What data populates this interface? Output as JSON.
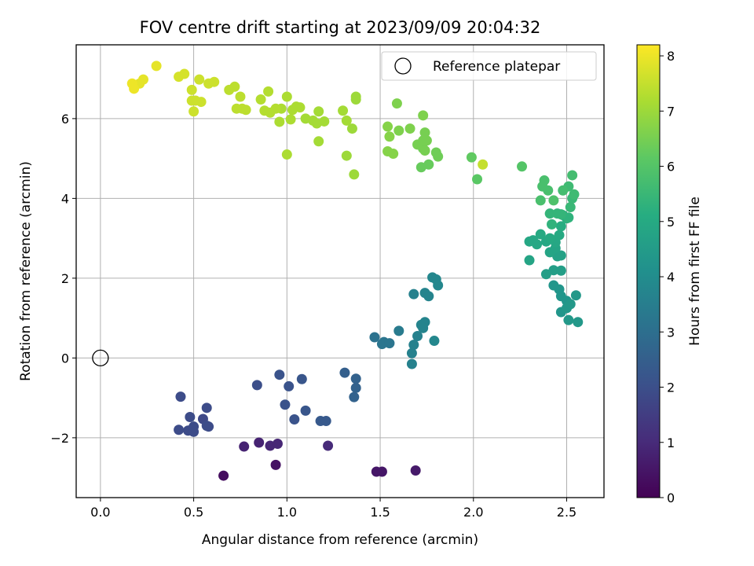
{
  "chart_data": {
    "type": "scatter",
    "title": "FOV centre drift starting at 2023/09/09 20:04:32",
    "xlabel": "Angular distance from reference (arcmin)",
    "ylabel": "Rotation from reference (arcmin)",
    "xlim": [
      -0.13,
      2.7
    ],
    "ylim": [
      -3.5,
      7.85
    ],
    "xticks": [
      0.0,
      0.5,
      1.0,
      1.5,
      2.0,
      2.5
    ],
    "xtick_labels": [
      "0.0",
      "0.5",
      "1.0",
      "1.5",
      "2.0",
      "2.5"
    ],
    "yticks": [
      -2,
      0,
      2,
      4,
      6
    ],
    "ytick_labels": [
      "−2",
      "0",
      "2",
      "4",
      "6"
    ],
    "grid": true,
    "legend": {
      "location": "top-right",
      "entries": [
        "Reference platepar"
      ]
    },
    "reference_point": {
      "name": "Reference platepar",
      "x": 0.0,
      "y": 0.0,
      "marker": "hollow-circle"
    },
    "colorbar": {
      "label": "Hours from first FF file",
      "colormap": "viridis",
      "range": [
        0,
        8.2
      ],
      "ticks": [
        0,
        1,
        2,
        3,
        4,
        5,
        6,
        7,
        8
      ],
      "tick_labels": [
        "0",
        "1",
        "2",
        "3",
        "4",
        "5",
        "6",
        "7",
        "8"
      ]
    },
    "series": [
      {
        "color_by": "hours",
        "points": [
          [
            0.66,
            -2.95,
            0.3
          ],
          [
            0.94,
            -2.68,
            0.4
          ],
          [
            1.48,
            -2.85,
            0.5
          ],
          [
            1.51,
            -2.85,
            0.5
          ],
          [
            1.69,
            -2.82,
            0.6
          ],
          [
            0.77,
            -2.22,
            0.8
          ],
          [
            0.85,
            -2.12,
            0.8
          ],
          [
            0.91,
            -2.2,
            0.9
          ],
          [
            0.95,
            -2.15,
            0.9
          ],
          [
            1.22,
            -2.2,
            1.0
          ],
          [
            0.42,
            -1.8,
            1.9
          ],
          [
            0.47,
            -1.82,
            1.9
          ],
          [
            0.5,
            -1.85,
            1.9
          ],
          [
            0.48,
            -1.48,
            1.9
          ],
          [
            0.5,
            -1.72,
            1.9
          ],
          [
            0.43,
            -0.97,
            1.9
          ],
          [
            0.55,
            -1.53,
            1.8
          ],
          [
            0.57,
            -1.25,
            1.9
          ],
          [
            0.57,
            -1.7,
            1.9
          ],
          [
            0.58,
            -1.72,
            1.9
          ],
          [
            0.84,
            -0.68,
            2.0
          ],
          [
            0.96,
            -0.42,
            2.1
          ],
          [
            0.99,
            -1.17,
            2.1
          ],
          [
            1.01,
            -0.71,
            2.1
          ],
          [
            1.04,
            -1.54,
            2.1
          ],
          [
            1.08,
            -0.53,
            2.2
          ],
          [
            1.1,
            -1.32,
            2.2
          ],
          [
            1.18,
            -1.58,
            2.3
          ],
          [
            1.21,
            -1.58,
            2.3
          ],
          [
            1.31,
            -0.37,
            2.5
          ],
          [
            1.37,
            -0.52,
            2.6
          ],
          [
            1.37,
            -0.75,
            2.6
          ],
          [
            1.36,
            -0.98,
            2.6
          ],
          [
            1.47,
            0.52,
            3.1
          ],
          [
            1.51,
            0.35,
            3.2
          ],
          [
            1.52,
            0.4,
            3.2
          ],
          [
            1.55,
            0.37,
            3.2
          ],
          [
            1.6,
            0.68,
            3.4
          ],
          [
            1.67,
            0.12,
            3.6
          ],
          [
            1.67,
            -0.15,
            3.6
          ],
          [
            1.68,
            0.33,
            3.6
          ],
          [
            1.7,
            0.55,
            3.6
          ],
          [
            1.68,
            1.6,
            3.6
          ],
          [
            1.72,
            0.83,
            3.7
          ],
          [
            1.74,
            0.9,
            3.7
          ],
          [
            1.73,
            0.75,
            3.7
          ],
          [
            1.74,
            1.63,
            3.7
          ],
          [
            1.76,
            1.55,
            3.7
          ],
          [
            1.78,
            2.02,
            3.8
          ],
          [
            1.8,
            1.97,
            3.8
          ],
          [
            1.81,
            1.82,
            3.8
          ],
          [
            1.79,
            0.43,
            3.8
          ],
          [
            2.43,
            1.82,
            4.3
          ],
          [
            2.46,
            1.72,
            4.3
          ],
          [
            2.47,
            1.55,
            4.3
          ],
          [
            2.5,
            1.43,
            4.3
          ],
          [
            2.47,
            1.15,
            4.3
          ],
          [
            2.5,
            1.25,
            4.4
          ],
          [
            2.52,
            1.35,
            4.4
          ],
          [
            2.55,
            1.57,
            4.4
          ],
          [
            2.51,
            0.95,
            4.4
          ],
          [
            2.56,
            0.9,
            4.4
          ],
          [
            2.39,
            2.1,
            4.6
          ],
          [
            2.43,
            2.2,
            4.6
          ],
          [
            2.47,
            2.19,
            4.6
          ],
          [
            2.45,
            2.55,
            4.7
          ],
          [
            2.47,
            2.57,
            4.7
          ],
          [
            2.3,
            2.45,
            4.8
          ],
          [
            2.41,
            2.65,
            4.8
          ],
          [
            2.44,
            2.75,
            4.8
          ],
          [
            2.44,
            2.9,
            4.9
          ],
          [
            2.39,
            2.92,
            4.9
          ],
          [
            2.3,
            2.92,
            4.9
          ],
          [
            2.32,
            2.95,
            4.9
          ],
          [
            2.34,
            2.85,
            4.9
          ],
          [
            2.36,
            3.1,
            5.0
          ],
          [
            2.41,
            3.0,
            5.0
          ],
          [
            2.46,
            3.08,
            5.0
          ],
          [
            2.47,
            3.3,
            5.1
          ],
          [
            2.48,
            3.58,
            5.2
          ],
          [
            2.5,
            3.5,
            5.2
          ],
          [
            2.51,
            3.52,
            5.3
          ],
          [
            2.42,
            3.35,
            5.3
          ],
          [
            2.41,
            3.62,
            5.4
          ],
          [
            2.45,
            3.62,
            5.4
          ],
          [
            2.47,
            3.6,
            5.4
          ],
          [
            2.52,
            3.78,
            5.5
          ],
          [
            2.53,
            4.0,
            5.5
          ],
          [
            2.51,
            4.3,
            5.6
          ],
          [
            2.54,
            4.1,
            5.6
          ],
          [
            2.53,
            4.58,
            5.7
          ],
          [
            2.48,
            4.2,
            5.7
          ],
          [
            2.37,
            4.3,
            5.8
          ],
          [
            2.38,
            4.45,
            5.8
          ],
          [
            2.4,
            4.2,
            5.8
          ],
          [
            2.36,
            3.95,
            5.8
          ],
          [
            2.43,
            3.95,
            5.9
          ],
          [
            2.26,
            4.8,
            6.0
          ],
          [
            2.02,
            4.48,
            6.1
          ],
          [
            1.99,
            5.03,
            6.2
          ],
          [
            1.72,
            4.78,
            6.3
          ],
          [
            1.76,
            4.85,
            6.3
          ],
          [
            1.81,
            5.05,
            6.4
          ],
          [
            1.8,
            5.15,
            6.4
          ],
          [
            1.73,
            5.25,
            6.4
          ],
          [
            1.7,
            5.35,
            6.5
          ],
          [
            1.73,
            5.45,
            6.5
          ],
          [
            1.75,
            5.45,
            6.5
          ],
          [
            1.74,
            5.65,
            6.5
          ],
          [
            1.74,
            5.2,
            6.5
          ],
          [
            1.73,
            6.08,
            6.6
          ],
          [
            1.66,
            5.75,
            6.6
          ],
          [
            1.6,
            5.7,
            6.6
          ],
          [
            1.59,
            6.38,
            6.6
          ],
          [
            1.54,
            5.8,
            6.7
          ],
          [
            1.55,
            5.55,
            6.7
          ],
          [
            1.54,
            5.18,
            6.7
          ],
          [
            1.57,
            5.12,
            6.7
          ],
          [
            2.05,
            4.85,
            7.5
          ],
          [
            1.36,
            4.6,
            7.0
          ],
          [
            1.32,
            5.07,
            7.0
          ],
          [
            1.35,
            5.75,
            7.0
          ],
          [
            1.37,
            6.48,
            7.0
          ],
          [
            1.37,
            6.55,
            7.0
          ],
          [
            1.3,
            6.2,
            7.1
          ],
          [
            1.32,
            5.95,
            7.1
          ],
          [
            1.2,
            5.93,
            7.1
          ],
          [
            1.17,
            6.18,
            7.1
          ],
          [
            1.16,
            5.88,
            7.1
          ],
          [
            1.14,
            5.95,
            7.1
          ],
          [
            1.1,
            6.0,
            7.1
          ],
          [
            1.07,
            6.28,
            7.2
          ],
          [
            1.05,
            6.3,
            7.2
          ],
          [
            1.03,
            6.22,
            7.2
          ],
          [
            1.02,
            5.98,
            7.2
          ],
          [
            1.0,
            6.55,
            7.2
          ],
          [
            1.0,
            5.1,
            7.2
          ],
          [
            0.97,
            6.25,
            7.2
          ],
          [
            0.96,
            5.92,
            7.2
          ],
          [
            0.94,
            6.25,
            7.3
          ],
          [
            0.91,
            6.15,
            7.3
          ],
          [
            0.9,
            6.68,
            7.3
          ],
          [
            0.88,
            6.2,
            7.3
          ],
          [
            0.86,
            6.48,
            7.3
          ],
          [
            1.17,
            5.43,
            7.1
          ],
          [
            0.78,
            6.22,
            7.4
          ],
          [
            0.76,
            6.25,
            7.4
          ],
          [
            0.73,
            6.25,
            7.4
          ],
          [
            0.75,
            6.55,
            7.4
          ],
          [
            0.72,
            6.8,
            7.4
          ],
          [
            0.69,
            6.72,
            7.4
          ],
          [
            0.58,
            6.88,
            7.6
          ],
          [
            0.61,
            6.92,
            7.6
          ],
          [
            0.53,
            6.98,
            7.6
          ],
          [
            0.54,
            6.42,
            7.6
          ],
          [
            0.51,
            6.45,
            7.6
          ],
          [
            0.49,
            6.72,
            7.6
          ],
          [
            0.49,
            6.45,
            7.6
          ],
          [
            0.5,
            6.18,
            7.6
          ],
          [
            0.42,
            7.05,
            7.7
          ],
          [
            0.45,
            7.12,
            7.7
          ],
          [
            0.3,
            7.32,
            7.9
          ],
          [
            0.23,
            6.98,
            7.9
          ],
          [
            0.21,
            6.88,
            7.9
          ],
          [
            0.17,
            6.88,
            8.0
          ],
          [
            0.18,
            6.75,
            8.0
          ]
        ]
      }
    ]
  }
}
